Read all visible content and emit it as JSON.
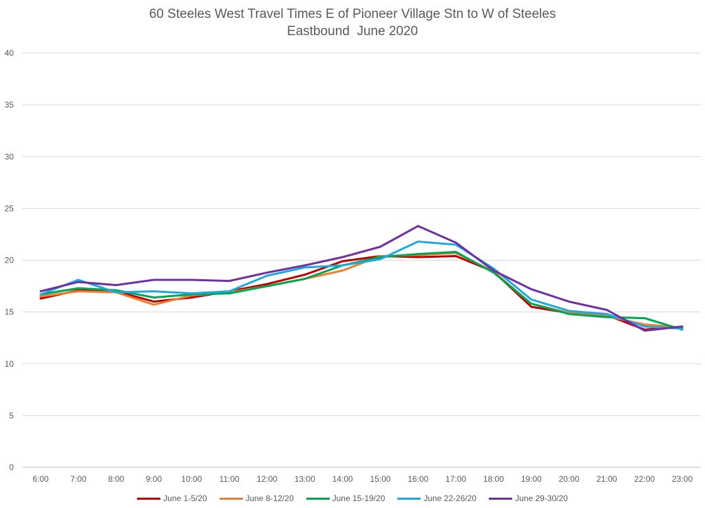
{
  "chart_data": {
    "type": "line",
    "title": "60 Steeles West Travel Times E of Pioneer Village Stn to W of Steeles",
    "subtitle": "Eastbound  June 2020",
    "xlabel": "",
    "ylabel": "",
    "ylim": [
      0,
      40
    ],
    "yticks": [
      0,
      5,
      10,
      15,
      20,
      25,
      30,
      35,
      40
    ],
    "grid": true,
    "legend_position": "bottom",
    "categories": [
      "6:00",
      "7:00",
      "8:00",
      "9:00",
      "10:00",
      "11:00",
      "12:00",
      "13:00",
      "14:00",
      "15:00",
      "16:00",
      "17:00",
      "18:00",
      "19:00",
      "20:00",
      "21:00",
      "22:00",
      "23:00"
    ],
    "series": [
      {
        "name": "June 1-5/20",
        "color": "#C00000",
        "values": [
          16.3,
          17.1,
          17.0,
          16.0,
          16.4,
          17.0,
          17.7,
          18.6,
          19.9,
          20.4,
          20.3,
          20.4,
          18.9,
          15.5,
          14.9,
          14.7,
          13.3,
          13.6
        ]
      },
      {
        "name": "June 8-12/20",
        "color": "#ED7D31",
        "values": [
          16.5,
          17.0,
          16.9,
          15.7,
          16.6,
          16.9,
          17.5,
          18.2,
          19.0,
          20.4,
          20.5,
          20.7,
          18.9,
          15.8,
          14.9,
          14.6,
          13.8,
          13.5
        ]
      },
      {
        "name": "June 15-19/20",
        "color": "#00A651",
        "values": [
          16.7,
          17.3,
          17.1,
          16.4,
          16.7,
          16.8,
          17.5,
          18.2,
          19.5,
          20.3,
          20.6,
          20.8,
          18.8,
          15.8,
          14.8,
          14.5,
          14.4,
          13.3
        ]
      },
      {
        "name": "June 22-26/20",
        "color": "#1FA9E1",
        "values": [
          16.7,
          18.1,
          16.9,
          17.0,
          16.8,
          17.0,
          18.5,
          19.3,
          19.5,
          20.1,
          21.8,
          21.5,
          19.2,
          16.2,
          15.1,
          14.8,
          13.6,
          13.4
        ]
      },
      {
        "name": "June 29-30/20",
        "color": "#7030A0",
        "values": [
          17.0,
          17.9,
          17.6,
          18.1,
          18.1,
          18.0,
          18.8,
          19.5,
          20.3,
          21.3,
          23.3,
          21.7,
          19.0,
          17.2,
          16.0,
          15.2,
          13.2,
          13.6
        ]
      }
    ]
  }
}
